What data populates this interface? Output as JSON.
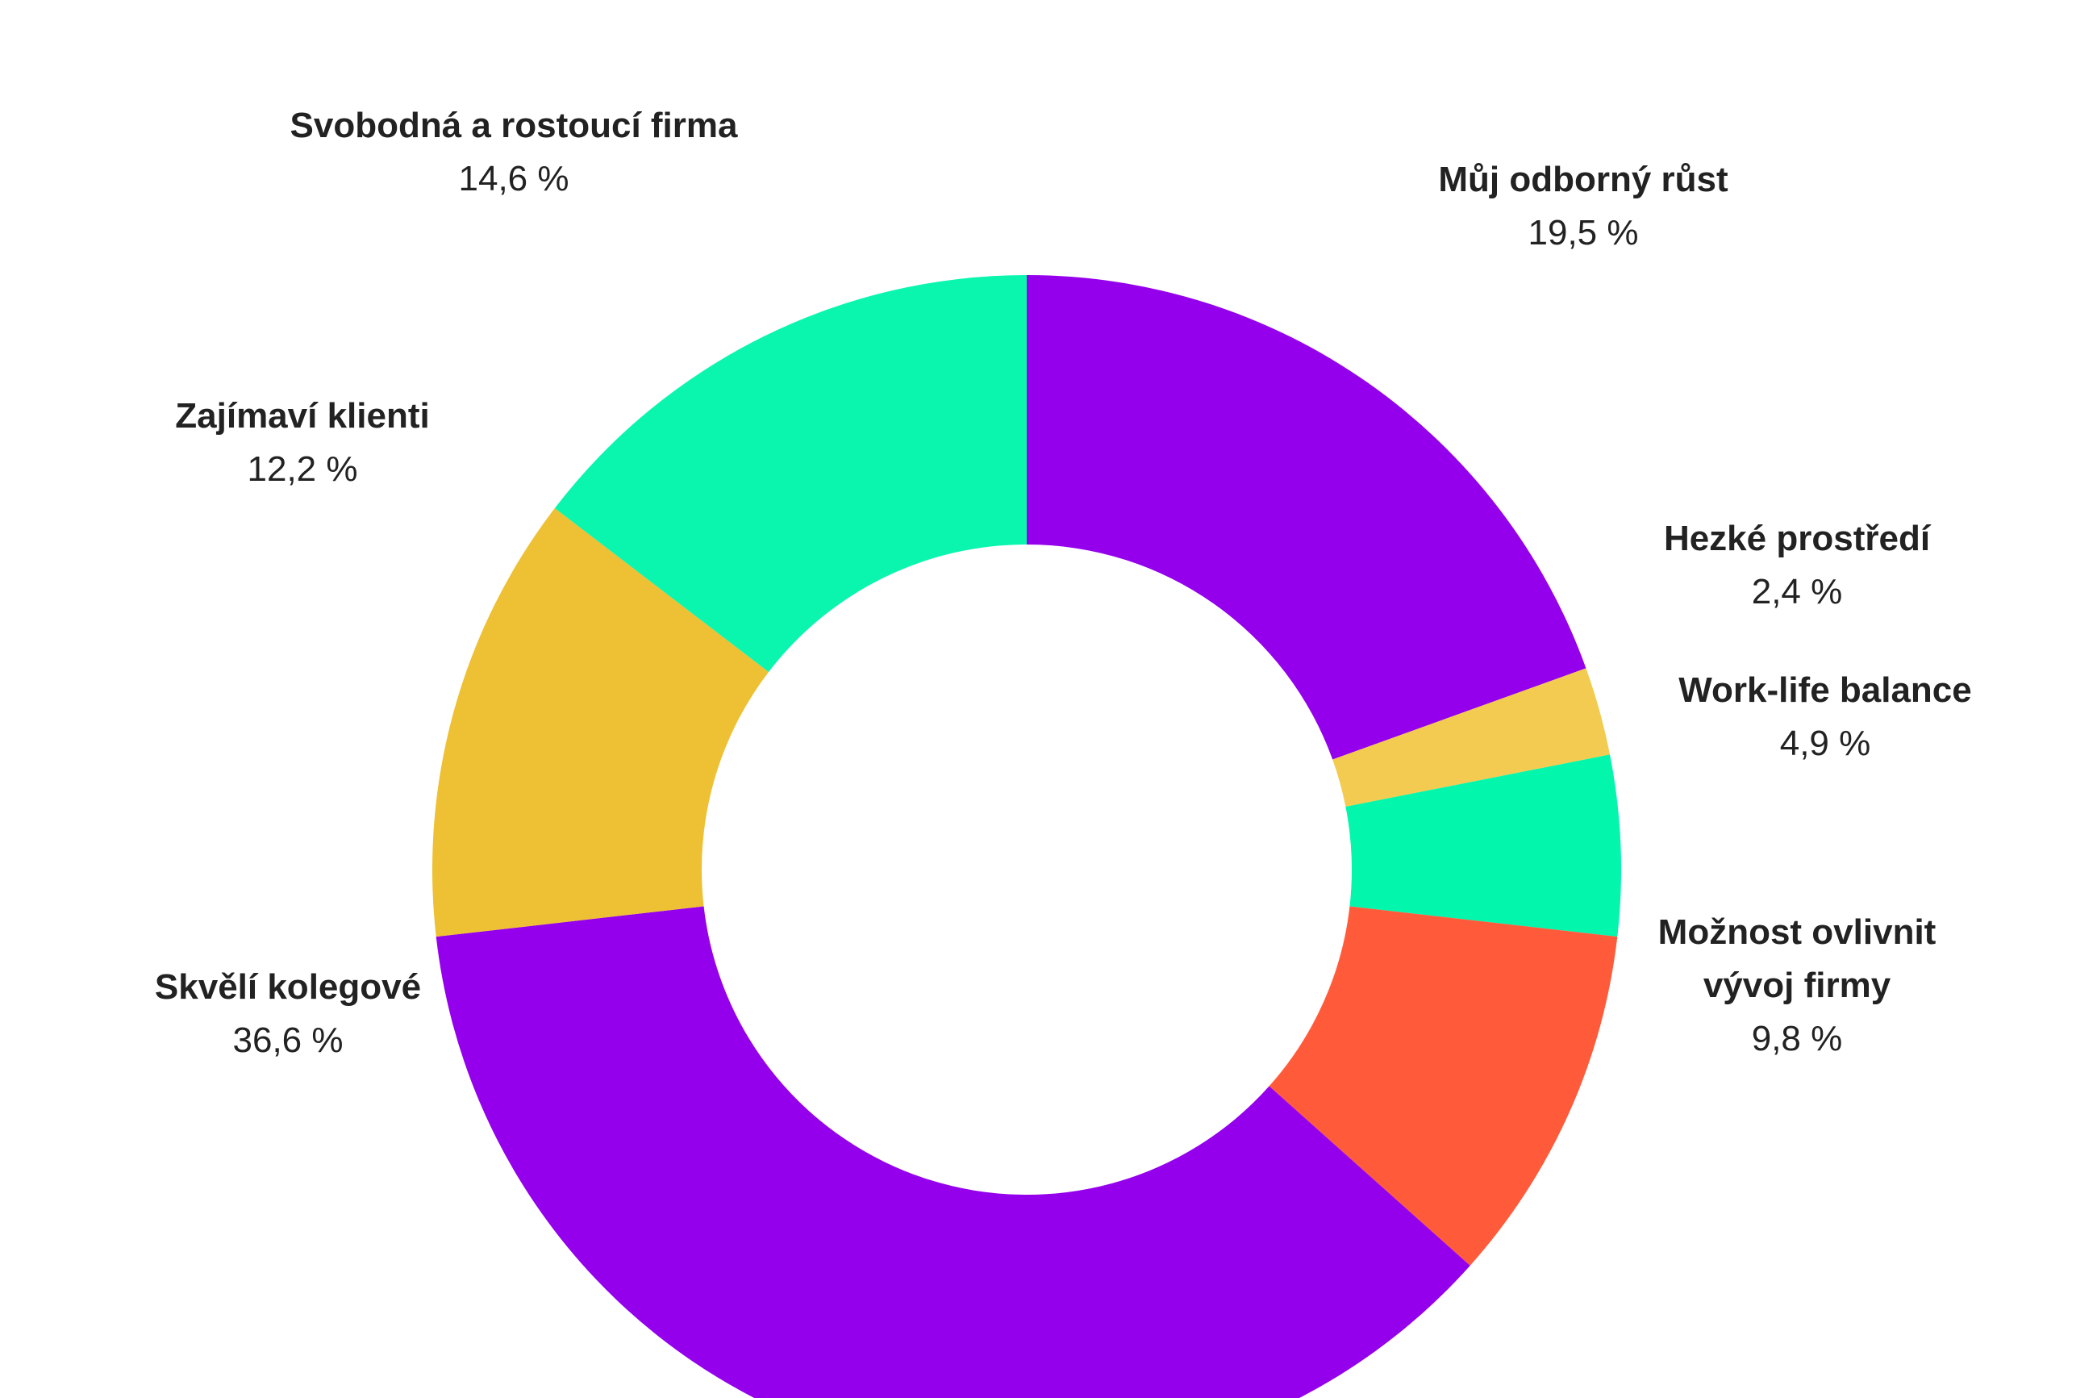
{
  "chart_data": {
    "type": "pie",
    "style": "donut",
    "slices": [
      {
        "label": [
          "Můj odborný růst"
        ],
        "value": 19.5,
        "display": "19,5 %",
        "color": "#9500EC"
      },
      {
        "label": [
          "Hezké prostředí"
        ],
        "value": 2.4,
        "display": "2,4 %",
        "color": "#F3CB51"
      },
      {
        "label": [
          "Work-life balance"
        ],
        "value": 4.9,
        "display": "4,9 %",
        "color": "#02F6AC"
      },
      {
        "label": [
          "Možnost ovlivnit",
          "vývoj firmy"
        ],
        "value": 9.8,
        "display": "9,8 %",
        "color": "#FF5B3B"
      },
      {
        "label": [
          "Skvělí kolegové"
        ],
        "value": 36.6,
        "display": "36,6 %",
        "color": "#9500EC"
      },
      {
        "label": [
          "Zajímaví klienti"
        ],
        "value": 12.2,
        "display": "12,2 %",
        "color": "#EEC033"
      },
      {
        "label": [
          "Svobodná a rostoucí firma"
        ],
        "value": 14.6,
        "display": "14,6 %",
        "color": "#0AF6AF"
      }
    ],
    "start_angle_deg": 0,
    "direction": "clockwise",
    "legend": "none"
  }
}
